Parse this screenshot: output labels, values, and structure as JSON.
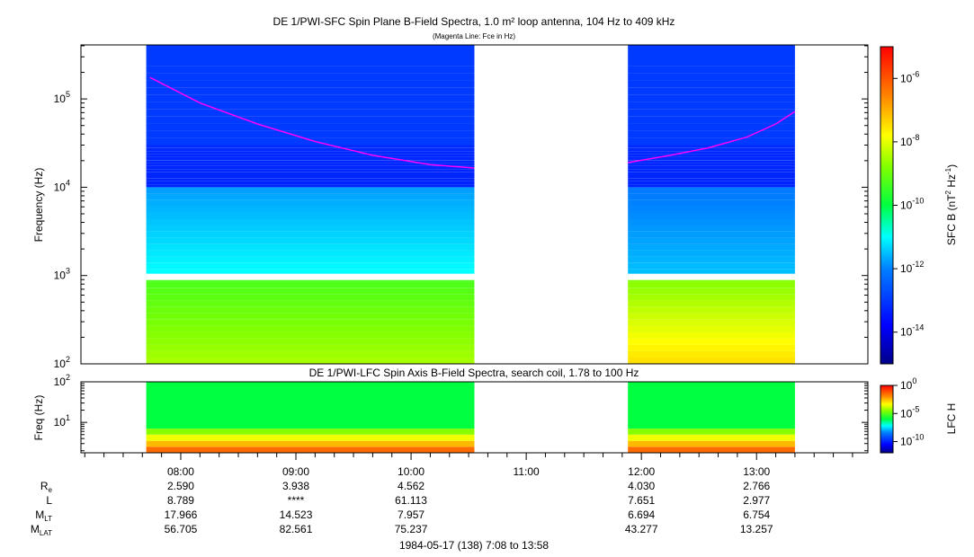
{
  "chart_data": [
    {
      "type": "heatmap",
      "title": "DE 1/PWI-SFC  Spin Plane B-Field Spectra, 1.0 m² loop antenna, 104 Hz to 409 kHz",
      "subtitle": "(Magenta Line: Fce in Hz)",
      "ylabel": "Frequency (Hz)",
      "yscale": "log",
      "ylim": [
        100,
        409000
      ],
      "yticks": [
        {
          "base": "10",
          "exp": "2"
        },
        {
          "base": "10",
          "exp": "3"
        },
        {
          "base": "10",
          "exp": "4"
        },
        {
          "base": "10",
          "exp": "5"
        }
      ],
      "xlim": [
        "07:08",
        "13:58"
      ],
      "data_segments": [
        {
          "start": "07:42",
          "end": "10:33"
        },
        {
          "start": "11:53",
          "end": "13:20"
        }
      ],
      "colorbar": {
        "label_main": "SFC B (nT",
        "label_sup1": "2",
        "label_mid": " Hz",
        "label_sup2": "-1",
        "label_end": ")",
        "scale": "log",
        "range": [
          1e-15,
          1e-05
        ],
        "ticks": [
          {
            "base": "10",
            "exp": "-6"
          },
          {
            "base": "10",
            "exp": "-8"
          },
          {
            "base": "10",
            "exp": "-10"
          },
          {
            "base": "10",
            "exp": "-12"
          },
          {
            "base": "10",
            "exp": "-14"
          }
        ]
      },
      "fce_line": {
        "name": "Fce",
        "color": "#ff00ff",
        "segments": [
          {
            "x": [
              "07:44",
              "08:10",
              "08:40",
              "09:10",
              "09:40",
              "10:10",
              "10:33"
            ],
            "y": [
              175000,
              90000,
              52000,
              33000,
              23000,
              18000,
              16500
            ]
          },
          {
            "x": [
              "11:53",
              "12:15",
              "12:35",
              "12:55",
              "13:10",
              "13:20"
            ],
            "y": [
              19000,
              23000,
              28000,
              37000,
              52000,
              72000
            ]
          }
        ]
      },
      "spectral_levels_log10": {
        "seg1": {
          "f_100_1k": -8.5,
          "f_1k_10k": -11.0,
          "f_10k_30k": -13.3,
          "f_30k_409k": -13.0
        },
        "seg2": {
          "f_100_1k": -7.5,
          "f_1k_10k": -11.5,
          "f_10k_30k": -13.3,
          "f_30k_409k": -13.0
        }
      }
    },
    {
      "type": "heatmap",
      "title": "DE 1/PWI-LFC  Spin Axis B-Field Spectra, search coil, 1.78 to 100 Hz",
      "ylabel": "Freq (Hz)",
      "yscale": "log",
      "ylim": [
        1.78,
        100
      ],
      "yticks": [
        {
          "base": "10",
          "exp": "1"
        },
        {
          "base": "10",
          "exp": "2"
        }
      ],
      "xlim": [
        "07:08",
        "13:58"
      ],
      "colorbar": {
        "label": "LFC H",
        "scale": "log",
        "range": [
          1e-12,
          1
        ],
        "ticks": [
          {
            "base": "10",
            "exp": "0"
          },
          {
            "base": "10",
            "exp": "-5"
          },
          {
            "base": "10",
            "exp": "-10"
          }
        ]
      },
      "band_levels_log10": [
        {
          "f_range": [
            1.78,
            2.5
          ],
          "level": -1.5
        },
        {
          "f_range": [
            2.5,
            3.5
          ],
          "level": -2.5
        },
        {
          "f_range": [
            3.5,
            5.0
          ],
          "level": -3.5
        },
        {
          "f_range": [
            5.0,
            7.0
          ],
          "level": -4.5
        },
        {
          "f_range": [
            7.0,
            100
          ],
          "level": -6.0
        }
      ]
    }
  ],
  "x_axis": {
    "tick_labels": [
      "08:00",
      "09:00",
      "10:00",
      "11:00",
      "12:00",
      "13:00"
    ]
  },
  "orbit_table": {
    "rows": [
      {
        "label": "R",
        "sub": "e",
        "values": [
          "2.590",
          "3.938",
          "4.562",
          "",
          "4.030",
          "2.766"
        ]
      },
      {
        "label": "L",
        "sub": "",
        "values": [
          "8.789",
          "****",
          "61.113",
          "",
          "7.651",
          "2.977"
        ]
      },
      {
        "label": "M",
        "sub": "LT",
        "values": [
          "17.966",
          "14.523",
          "7.957",
          "",
          "6.694",
          "6.754"
        ]
      },
      {
        "label": "M",
        "sub": "LAT",
        "values": [
          "56.705",
          "82.561",
          "75.237",
          "",
          "43.277",
          "13.257"
        ]
      }
    ]
  },
  "footer": "1984-05-17 (138) 7:08 to 13:58"
}
